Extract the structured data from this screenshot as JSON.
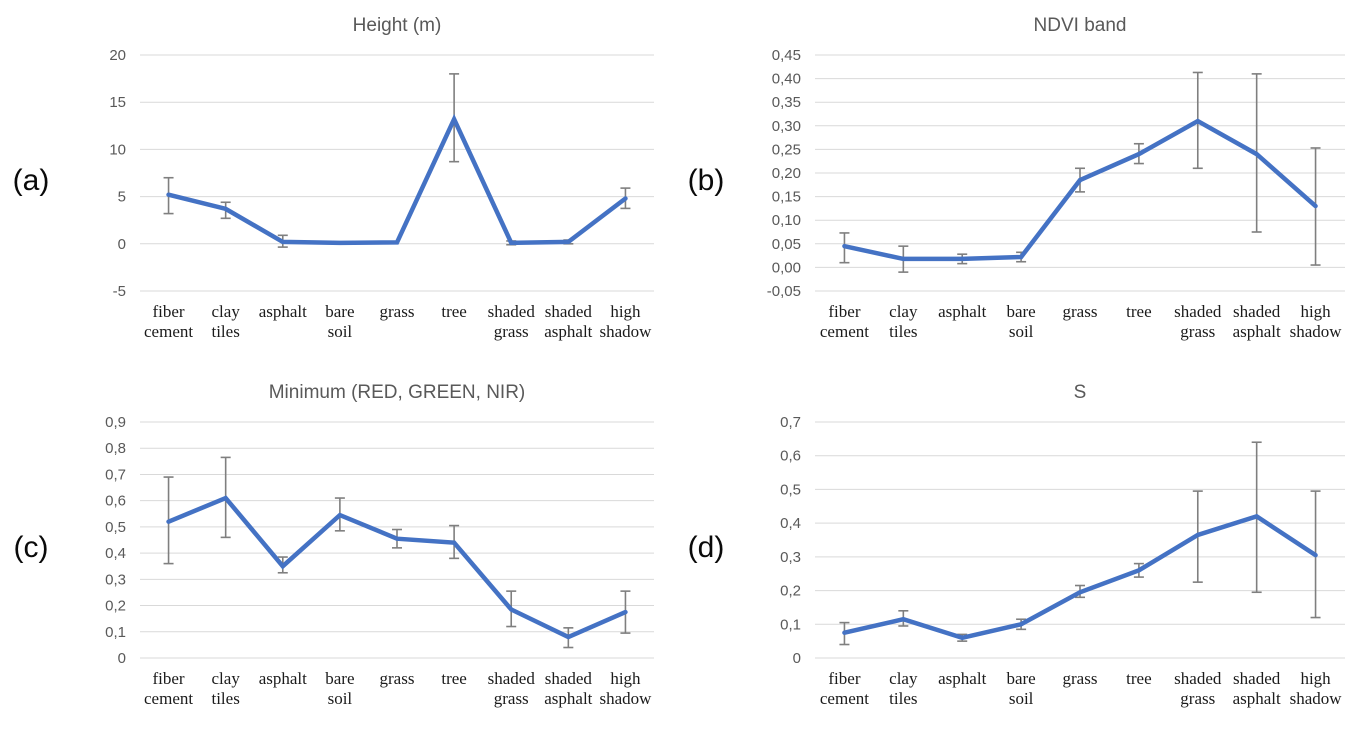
{
  "style": {
    "background": "#ffffff",
    "line_color": "#4472C4",
    "error_bar_color": "#7f7f7f",
    "gridline_color": "#d9d9d9",
    "title_color": "#595959",
    "ytick_color": "#595959",
    "category_color": "#1b1b1b",
    "panel_label_color": "#0a0a0a"
  },
  "chart_data": [
    {
      "type": "line",
      "panel_label": "(a)",
      "title": "Height (m)",
      "legend": false,
      "grid": true,
      "categories": [
        "fiber cement",
        "clay tiles",
        "asphalt",
        "bare soil",
        "grass",
        "tree",
        "shaded grass",
        "shaded asphalt",
        "high shadow"
      ],
      "values": [
        5.2,
        3.7,
        0.2,
        0.1,
        0.15,
        13.2,
        0.1,
        0.2,
        4.8
      ],
      "err_min": [
        3.2,
        2.7,
        -0.35,
        0.1,
        0.15,
        8.7,
        -0.1,
        0.0,
        3.75
      ],
      "err_max": [
        7.0,
        4.4,
        0.9,
        0.1,
        0.15,
        18.0,
        0.3,
        0.4,
        5.9
      ],
      "ylim": [
        -5,
        20
      ],
      "yticks": [
        20,
        15,
        10,
        5,
        0,
        -5
      ],
      "ytick_labels": [
        "20",
        "15",
        "10",
        "5",
        "0",
        "-5"
      ]
    },
    {
      "type": "line",
      "panel_label": "(b)",
      "title": "NDVI band",
      "legend": false,
      "grid": true,
      "categories": [
        "fiber cement",
        "clay tiles",
        "asphalt",
        "bare soil",
        "grass",
        "tree",
        "shaded grass",
        "shaded asphalt",
        "high shadow"
      ],
      "values": [
        0.045,
        0.018,
        0.018,
        0.022,
        0.185,
        0.24,
        0.31,
        0.24,
        0.13
      ],
      "err_min": [
        0.01,
        -0.01,
        0.008,
        0.012,
        0.16,
        0.22,
        0.21,
        0.075,
        0.005
      ],
      "err_max": [
        0.073,
        0.045,
        0.028,
        0.032,
        0.21,
        0.262,
        0.413,
        0.41,
        0.253
      ],
      "ylim": [
        -0.05,
        0.45
      ],
      "yticks": [
        0.45,
        0.4,
        0.35,
        0.3,
        0.25,
        0.2,
        0.15,
        0.1,
        0.05,
        0.0,
        -0.05
      ],
      "ytick_labels": [
        "0,45",
        "0,40",
        "0,35",
        "0,30",
        "0,25",
        "0,20",
        "0,15",
        "0,10",
        "0,05",
        "0,00",
        "-0,05"
      ]
    },
    {
      "type": "line",
      "panel_label": "(c)",
      "title": "Minimum (RED, GREEN, NIR)",
      "legend": false,
      "grid": true,
      "categories": [
        "fiber cement",
        "clay tiles",
        "asphalt",
        "bare soil",
        "grass",
        "tree",
        "shaded grass",
        "shaded asphalt",
        "high shadow"
      ],
      "values": [
        0.52,
        0.61,
        0.35,
        0.545,
        0.455,
        0.44,
        0.185,
        0.08,
        0.175
      ],
      "err_min": [
        0.36,
        0.46,
        0.325,
        0.485,
        0.42,
        0.38,
        0.12,
        0.04,
        0.095
      ],
      "err_max": [
        0.69,
        0.765,
        0.385,
        0.61,
        0.49,
        0.505,
        0.255,
        0.115,
        0.255
      ],
      "ylim": [
        0,
        0.9
      ],
      "yticks": [
        0.9,
        0.8,
        0.7,
        0.6,
        0.5,
        0.4,
        0.3,
        0.2,
        0.1,
        0
      ],
      "ytick_labels": [
        "0,9",
        "0,8",
        "0,7",
        "0,6",
        "0,5",
        "0,4",
        "0,3",
        "0,2",
        "0,1",
        "0"
      ]
    },
    {
      "type": "line",
      "panel_label": "(d)",
      "title": "S",
      "legend": false,
      "grid": true,
      "categories": [
        "fiber cement",
        "clay tiles",
        "asphalt",
        "bare soil",
        "grass",
        "tree",
        "shaded grass",
        "shaded asphalt",
        "high shadow"
      ],
      "values": [
        0.075,
        0.115,
        0.06,
        0.1,
        0.195,
        0.26,
        0.365,
        0.42,
        0.305
      ],
      "err_min": [
        0.04,
        0.095,
        0.05,
        0.085,
        0.18,
        0.24,
        0.225,
        0.195,
        0.12
      ],
      "err_max": [
        0.105,
        0.14,
        0.07,
        0.115,
        0.215,
        0.28,
        0.495,
        0.64,
        0.495
      ],
      "ylim": [
        0,
        0.7
      ],
      "yticks": [
        0.7,
        0.6,
        0.5,
        0.4,
        0.3,
        0.2,
        0.1,
        0
      ],
      "ytick_labels": [
        "0,7",
        "0,6",
        "0,5",
        "0,4",
        "0,3",
        "0,2",
        "0,1",
        "0"
      ]
    }
  ]
}
